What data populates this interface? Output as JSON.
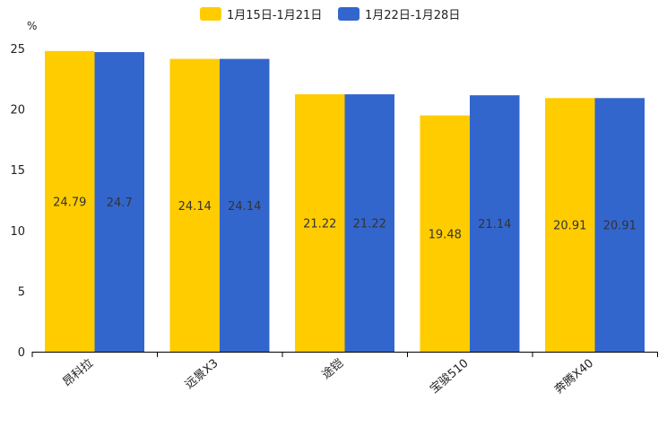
{
  "chart_data": {
    "type": "bar",
    "title": "",
    "xlabel": "",
    "ylabel": "%",
    "ylim": [
      0,
      25
    ],
    "yticks": [
      0,
      5,
      10,
      15,
      20,
      25
    ],
    "grid": false,
    "legend_position": "top-center",
    "categories": [
      "昂科拉",
      "远景X3",
      "途铠",
      "宝骏510",
      "奔腾X40"
    ],
    "series": [
      {
        "name": "1月15日-1月21日",
        "color": "#FFCC00",
        "values": [
          24.79,
          24.14,
          21.22,
          19.48,
          20.91
        ],
        "labels": [
          "24.79",
          "24.14",
          "21.22",
          "19.48",
          "20.91"
        ]
      },
      {
        "name": "1月22日-1月28日",
        "color": "#3366CC",
        "values": [
          24.7,
          24.14,
          21.22,
          21.14,
          20.91
        ],
        "labels": [
          "24.7",
          "24.14",
          "21.22",
          "21.14",
          "20.91"
        ]
      }
    ]
  }
}
